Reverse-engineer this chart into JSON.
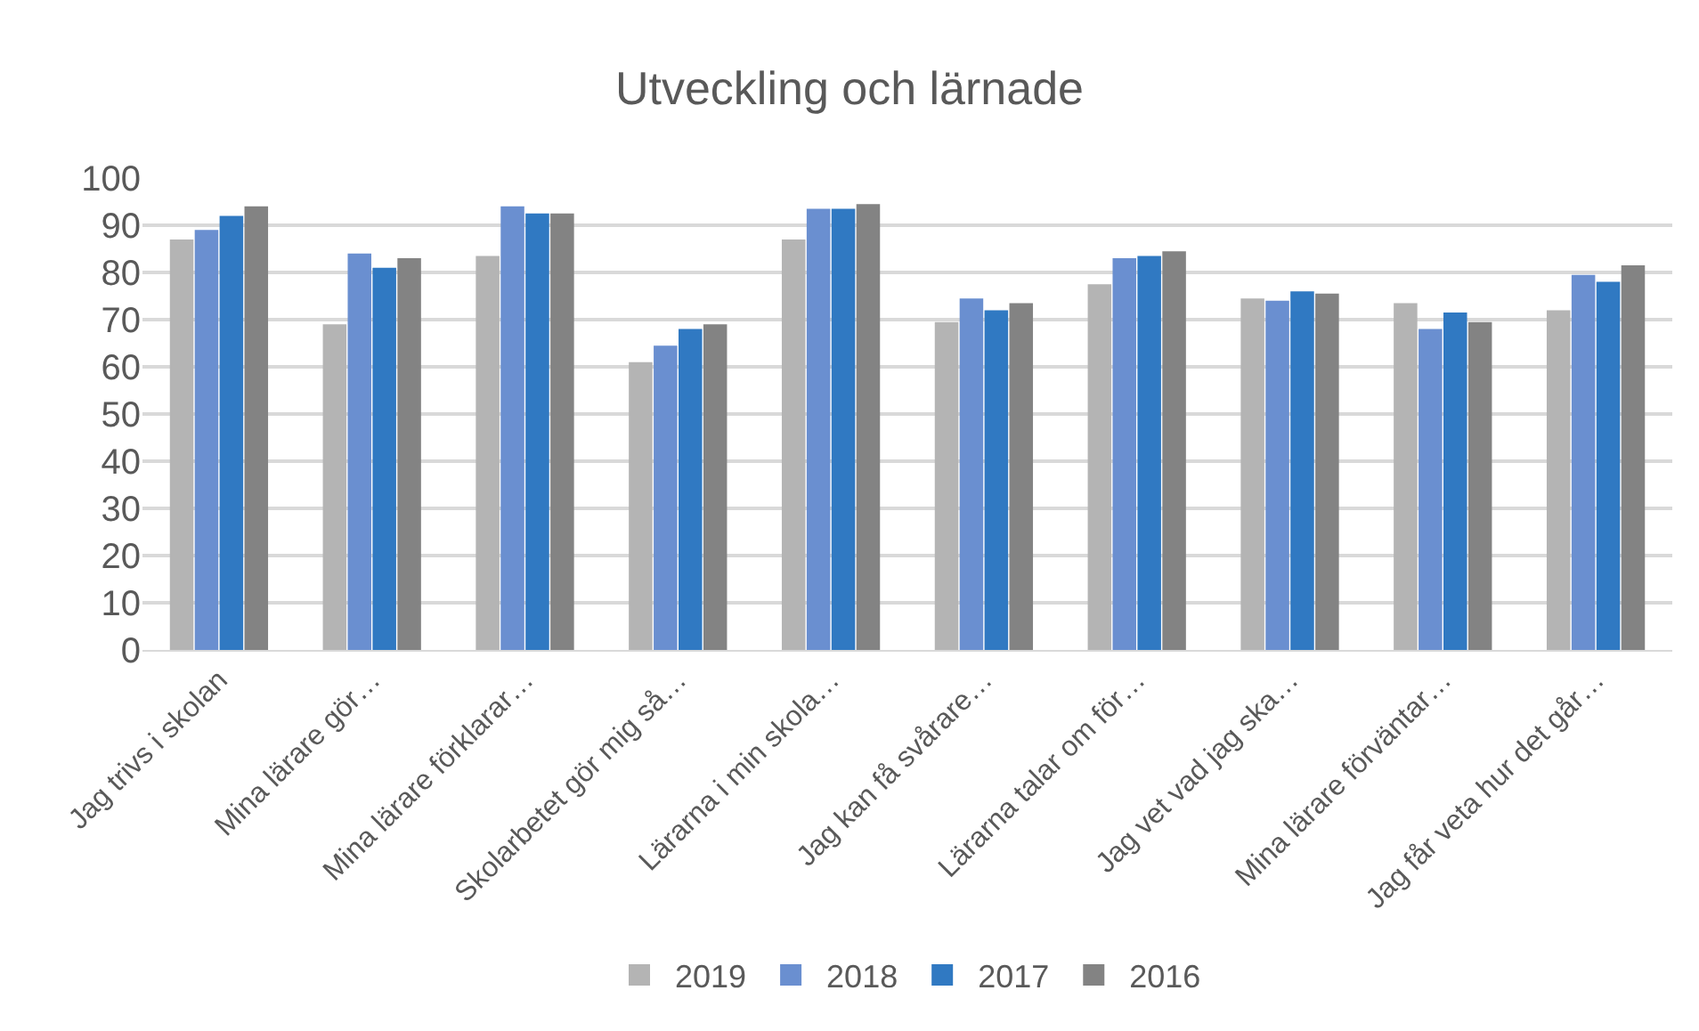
{
  "chart_data": {
    "type": "bar",
    "title": "Utveckling och lärnade",
    "categories": [
      "Jag trivs i skolan",
      "Mina lärare gör…",
      "Mina lärare förklarar…",
      "Skolarbetet gör mig så…",
      "Lärarna i min skola…",
      "Jag kan få svårare…",
      "Lärarna talar om för…",
      "Jag vet vad jag ska…",
      "Mina lärare förväntar…",
      "Jag får veta hur det går…"
    ],
    "series": [
      {
        "name": "2019",
        "color": "#b4b4b4",
        "values": [
          87,
          69,
          83.5,
          61,
          87,
          69.5,
          77.5,
          74.5,
          73.5,
          72
        ]
      },
      {
        "name": "2018",
        "color": "#6a8fd0",
        "values": [
          89,
          84,
          94,
          64.5,
          93.5,
          74.5,
          83,
          74,
          68,
          79.5
        ]
      },
      {
        "name": "2017",
        "color": "#3079c2",
        "values": [
          92,
          81,
          92.5,
          68,
          93.5,
          72,
          83.5,
          76,
          71.5,
          78
        ]
      },
      {
        "name": "2016",
        "color": "#838383",
        "values": [
          94,
          83,
          92.5,
          69,
          94.5,
          73.5,
          84.5,
          75.5,
          69.5,
          81.5
        ]
      }
    ],
    "ylim": [
      0,
      100
    ],
    "yticks": [
      0,
      10,
      20,
      30,
      40,
      50,
      60,
      70,
      80,
      90,
      100
    ],
    "grid": "y",
    "legend": "bottom"
  }
}
